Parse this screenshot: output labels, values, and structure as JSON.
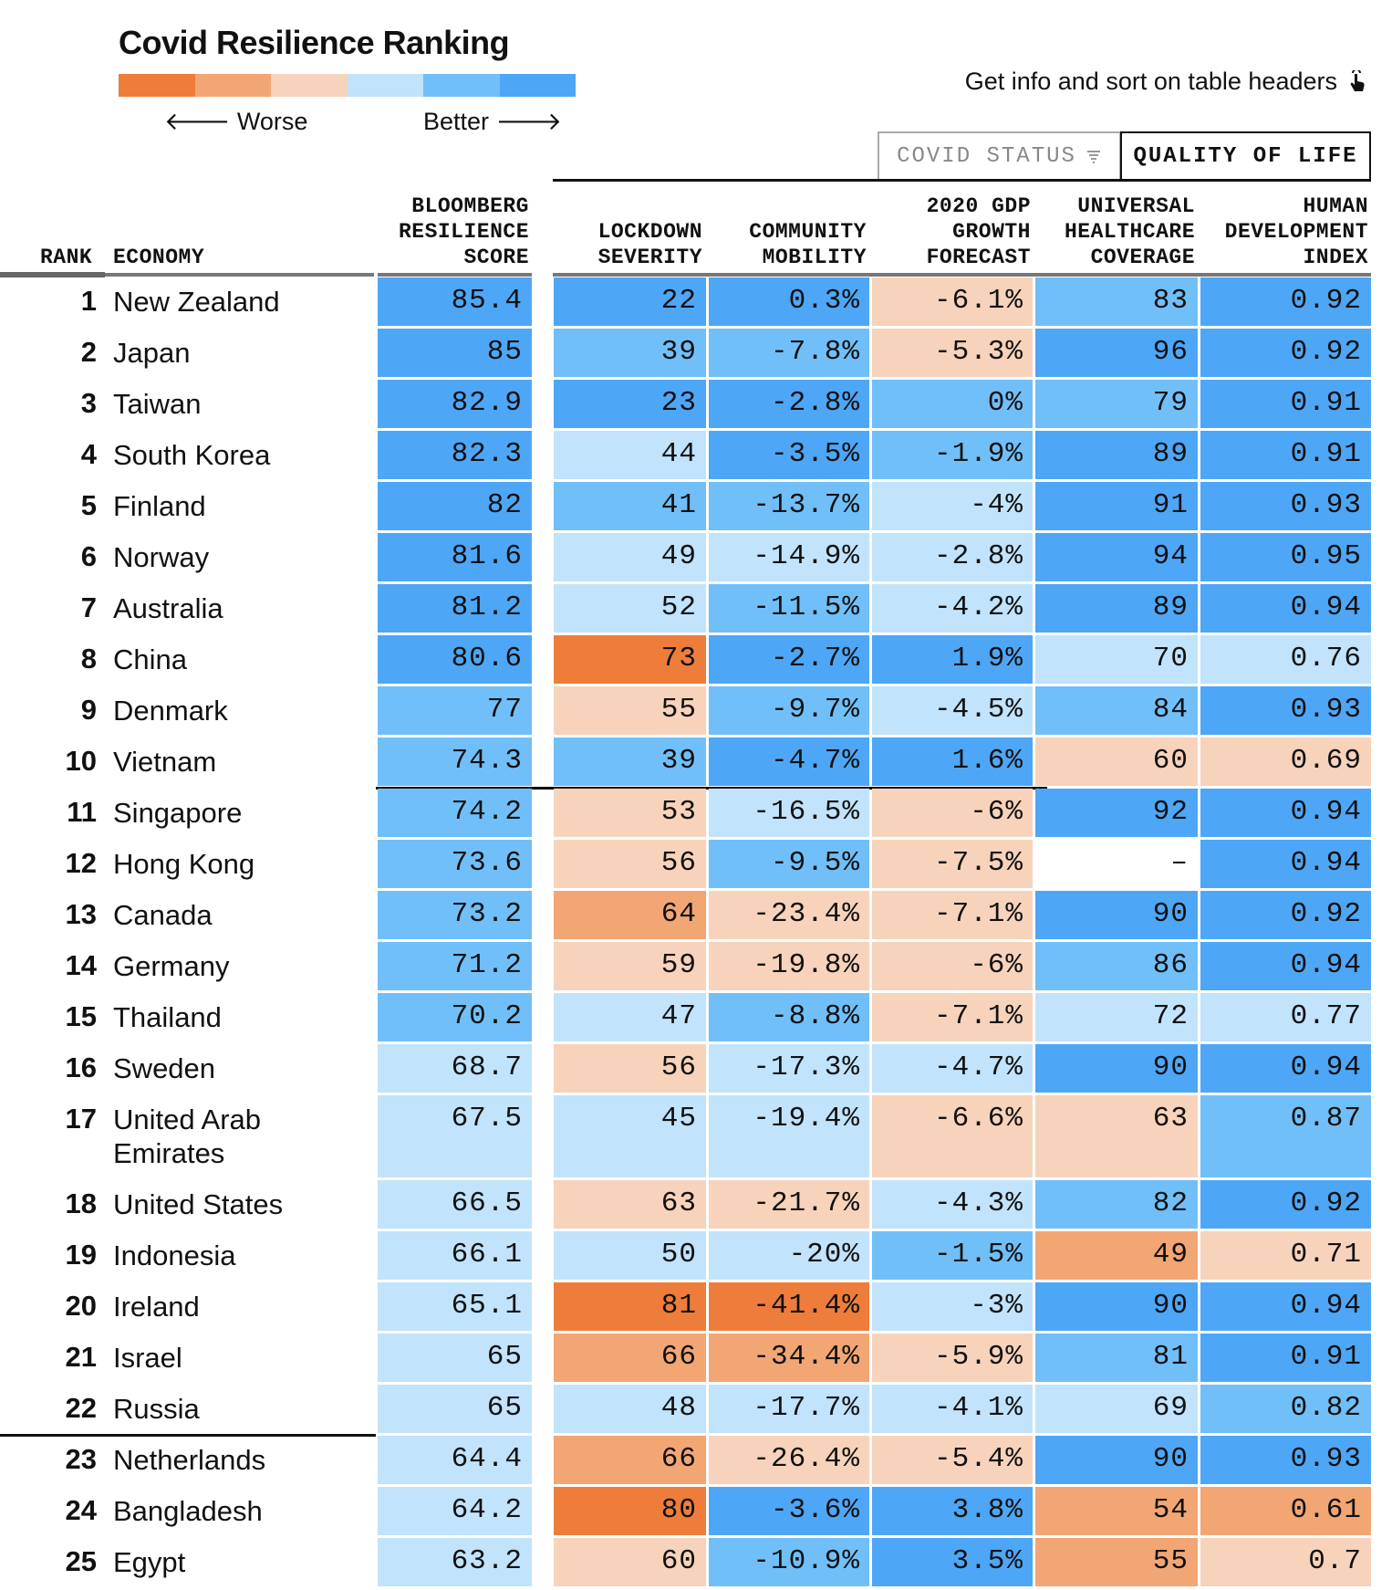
{
  "title": "Covid Resilience Ranking",
  "legend": {
    "worse_label": "Worse",
    "better_label": "Better",
    "colors": [
      "#ee7d3b",
      "#f2a674",
      "#f7d3bb",
      "#c1e3fb",
      "#71bff8",
      "#4ea6f6"
    ]
  },
  "info_text": "Get info and sort on table headers",
  "tabs": [
    {
      "label": "COVID STATUS",
      "active": false
    },
    {
      "label": "QUALITY OF LIFE",
      "active": true
    }
  ],
  "headers": {
    "rank": "RANK",
    "economy": "ECONOMY",
    "score": "BLOOMBERG\nRESILIENCE\nSCORE",
    "lockdown": "LOCKDOWN\nSEVERITY",
    "mobility": "COMMUNITY\nMOBILITY",
    "gdp": "2020 GDP\nGROWTH\nFORECAST",
    "uhc": "UNIVERSAL\nHEALTHCARE\nCOVERAGE",
    "hdi": "HUMAN\nDEVELOPMENT\nINDEX"
  },
  "rows": [
    {
      "rank": "1",
      "economy": "New Zealand",
      "score": "85.4",
      "lockdown": "22",
      "mobility": "0.3%",
      "gdp": "-6.1%",
      "uhc": "83",
      "hdi": "0.92",
      "levels": [
        6,
        6,
        6,
        3,
        5,
        6
      ]
    },
    {
      "rank": "2",
      "economy": "Japan",
      "score": "85",
      "lockdown": "39",
      "mobility": "-7.8%",
      "gdp": "-5.3%",
      "uhc": "96",
      "hdi": "0.92",
      "levels": [
        6,
        5,
        5,
        3,
        6,
        6
      ]
    },
    {
      "rank": "3",
      "economy": "Taiwan",
      "score": "82.9",
      "lockdown": "23",
      "mobility": "-2.8%",
      "gdp": "0%",
      "uhc": "79",
      "hdi": "0.91",
      "levels": [
        6,
        6,
        6,
        5,
        5,
        6
      ]
    },
    {
      "rank": "4",
      "economy": "South Korea",
      "score": "82.3",
      "lockdown": "44",
      "mobility": "-3.5%",
      "gdp": "-1.9%",
      "uhc": "89",
      "hdi": "0.91",
      "levels": [
        6,
        4,
        6,
        5,
        6,
        6
      ]
    },
    {
      "rank": "5",
      "economy": "Finland",
      "score": "82",
      "lockdown": "41",
      "mobility": "-13.7%",
      "gdp": "-4%",
      "uhc": "91",
      "hdi": "0.93",
      "levels": [
        6,
        5,
        5,
        4,
        6,
        6
      ]
    },
    {
      "rank": "6",
      "economy": "Norway",
      "score": "81.6",
      "lockdown": "49",
      "mobility": "-14.9%",
      "gdp": "-2.8%",
      "uhc": "94",
      "hdi": "0.95",
      "levels": [
        6,
        4,
        4,
        4,
        6,
        6
      ]
    },
    {
      "rank": "7",
      "economy": "Australia",
      "score": "81.2",
      "lockdown": "52",
      "mobility": "-11.5%",
      "gdp": "-4.2%",
      "uhc": "89",
      "hdi": "0.94",
      "levels": [
        6,
        4,
        5,
        4,
        6,
        6
      ]
    },
    {
      "rank": "8",
      "economy": "China",
      "score": "80.6",
      "lockdown": "73",
      "mobility": "-2.7%",
      "gdp": "1.9%",
      "uhc": "70",
      "hdi": "0.76",
      "levels": [
        6,
        1,
        6,
        6,
        4,
        4
      ]
    },
    {
      "rank": "9",
      "economy": "Denmark",
      "score": "77",
      "lockdown": "55",
      "mobility": "-9.7%",
      "gdp": "-4.5%",
      "uhc": "84",
      "hdi": "0.93",
      "levels": [
        5,
        3,
        5,
        4,
        5,
        6
      ]
    },
    {
      "rank": "10",
      "economy": "Vietnam",
      "score": "74.3",
      "lockdown": "39",
      "mobility": "-4.7%",
      "gdp": "1.6%",
      "uhc": "60",
      "hdi": "0.69",
      "levels": [
        5,
        5,
        6,
        6,
        3,
        3
      ]
    },
    {
      "rank": "11",
      "economy": "Singapore",
      "score": "74.2",
      "lockdown": "53",
      "mobility": "-16.5%",
      "gdp": "-6%",
      "uhc": "92",
      "hdi": "0.94",
      "levels": [
        5,
        3,
        4,
        3,
        6,
        6
      ]
    },
    {
      "rank": "12",
      "economy": "Hong Kong",
      "score": "73.6",
      "lockdown": "56",
      "mobility": "-9.5%",
      "gdp": "-7.5%",
      "uhc": "–",
      "hdi": "0.94",
      "levels": [
        5,
        3,
        5,
        3,
        0,
        6
      ]
    },
    {
      "rank": "13",
      "economy": "Canada",
      "score": "73.2",
      "lockdown": "64",
      "mobility": "-23.4%",
      "gdp": "-7.1%",
      "uhc": "90",
      "hdi": "0.92",
      "levels": [
        5,
        2,
        3,
        3,
        6,
        6
      ]
    },
    {
      "rank": "14",
      "economy": "Germany",
      "score": "71.2",
      "lockdown": "59",
      "mobility": "-19.8%",
      "gdp": "-6%",
      "uhc": "86",
      "hdi": "0.94",
      "levels": [
        5,
        3,
        3,
        3,
        5,
        6
      ]
    },
    {
      "rank": "15",
      "economy": "Thailand",
      "score": "70.2",
      "lockdown": "47",
      "mobility": "-8.8%",
      "gdp": "-7.1%",
      "uhc": "72",
      "hdi": "0.77",
      "levels": [
        5,
        4,
        5,
        3,
        4,
        4
      ]
    },
    {
      "rank": "16",
      "economy": "Sweden",
      "score": "68.7",
      "lockdown": "56",
      "mobility": "-17.3%",
      "gdp": "-4.7%",
      "uhc": "90",
      "hdi": "0.94",
      "levels": [
        4,
        3,
        4,
        4,
        6,
        6
      ]
    },
    {
      "rank": "17",
      "economy": "United Arab Emirates",
      "score": "67.5",
      "lockdown": "45",
      "mobility": "-19.4%",
      "gdp": "-6.6%",
      "uhc": "63",
      "hdi": "0.87",
      "levels": [
        4,
        4,
        4,
        3,
        3,
        5
      ]
    },
    {
      "rank": "18",
      "economy": "United States",
      "score": "66.5",
      "lockdown": "63",
      "mobility": "-21.7%",
      "gdp": "-4.3%",
      "uhc": "82",
      "hdi": "0.92",
      "levels": [
        4,
        3,
        3,
        4,
        5,
        6
      ]
    },
    {
      "rank": "19",
      "economy": "Indonesia",
      "score": "66.1",
      "lockdown": "50",
      "mobility": "-20%",
      "gdp": "-1.5%",
      "uhc": "49",
      "hdi": "0.71",
      "levels": [
        4,
        4,
        4,
        5,
        2,
        3
      ]
    },
    {
      "rank": "20",
      "economy": "Ireland",
      "score": "65.1",
      "lockdown": "81",
      "mobility": "-41.4%",
      "gdp": "-3%",
      "uhc": "90",
      "hdi": "0.94",
      "levels": [
        4,
        1,
        1,
        4,
        6,
        6
      ]
    },
    {
      "rank": "21",
      "economy": "Israel",
      "score": "65",
      "lockdown": "66",
      "mobility": "-34.4%",
      "gdp": "-5.9%",
      "uhc": "81",
      "hdi": "0.91",
      "levels": [
        4,
        2,
        2,
        3,
        5,
        6
      ]
    },
    {
      "rank": "22",
      "economy": "Russia",
      "score": "65",
      "lockdown": "48",
      "mobility": "-17.7%",
      "gdp": "-4.1%",
      "uhc": "69",
      "hdi": "0.82",
      "levels": [
        4,
        4,
        4,
        4,
        4,
        5
      ]
    },
    {
      "rank": "23",
      "economy": "Netherlands",
      "score": "64.4",
      "lockdown": "66",
      "mobility": "-26.4%",
      "gdp": "-5.4%",
      "uhc": "90",
      "hdi": "0.93",
      "levels": [
        4,
        2,
        3,
        3,
        6,
        6
      ]
    },
    {
      "rank": "24",
      "economy": "Bangladesh",
      "score": "64.2",
      "lockdown": "80",
      "mobility": "-3.6%",
      "gdp": "3.8%",
      "uhc": "54",
      "hdi": "0.61",
      "levels": [
        4,
        1,
        6,
        6,
        2,
        2
      ]
    },
    {
      "rank": "25",
      "economy": "Egypt",
      "score": "63.2",
      "lockdown": "60",
      "mobility": "-10.9%",
      "gdp": "3.5%",
      "uhc": "55",
      "hdi": "0.7",
      "levels": [
        4,
        3,
        5,
        6,
        2,
        3
      ]
    }
  ]
}
